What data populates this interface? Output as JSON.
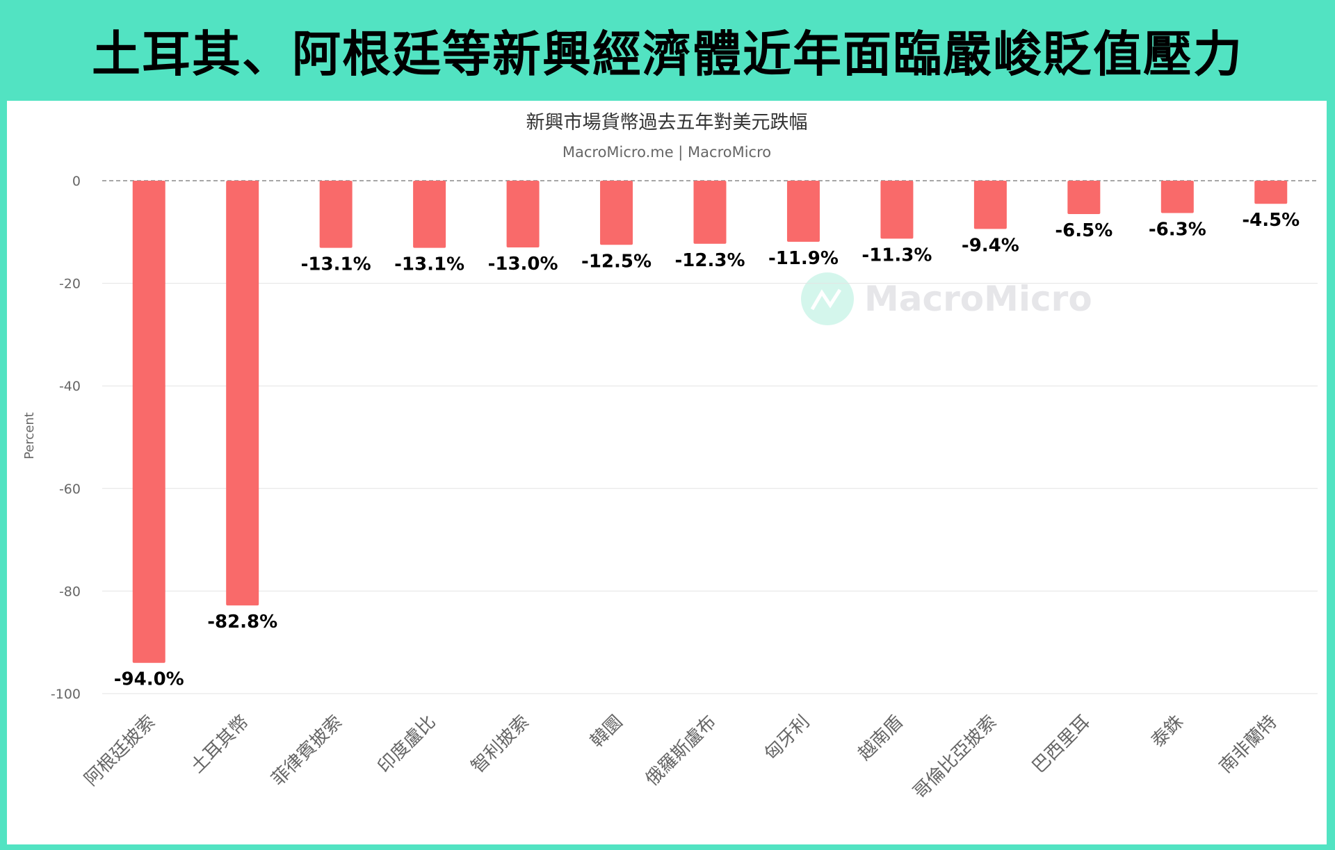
{
  "header": {
    "title": "土耳其、阿根廷等新興經濟體近年面臨嚴峻貶值壓力"
  },
  "watermark": {
    "text": "MacroMicro"
  },
  "colors": {
    "background": "#52e3c2",
    "bar": "#f96a6a",
    "watermark_circle": "#d4f6ec"
  },
  "chart_data": {
    "type": "bar",
    "title": "新興市場貨幣過去五年對美元跌幅",
    "subtitle": "MacroMicro.me | MacroMicro",
    "ylabel": "Percent",
    "xlabel": "",
    "ylim": [
      -100,
      0
    ],
    "yticks": [
      0,
      -20,
      -40,
      -60,
      -80,
      -100
    ],
    "grid": true,
    "legend": "none",
    "categories": [
      "阿根廷披索",
      "土耳其幣",
      "菲律賓披索",
      "印度盧比",
      "智利披索",
      "韓圜",
      "俄羅斯盧布",
      "匈牙利",
      "越南盾",
      "哥倫比亞披索",
      "巴西里耳",
      "泰銖",
      "南非蘭特"
    ],
    "values": [
      -94.0,
      -82.8,
      -13.1,
      -13.1,
      -13.0,
      -12.5,
      -12.3,
      -11.9,
      -11.3,
      -9.4,
      -6.5,
      -6.3,
      -4.5
    ],
    "data_labels": [
      "-94.0%",
      "-82.8%",
      "-13.1%",
      "-13.1%",
      "-13.0%",
      "-12.5%",
      "-12.3%",
      "-11.9%",
      "-11.3%",
      "-9.4%",
      "-6.5%",
      "-6.3%",
      "-4.5%"
    ]
  }
}
